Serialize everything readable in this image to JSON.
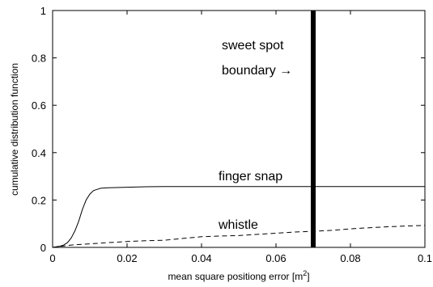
{
  "chart_data": {
    "type": "line",
    "xlabel": "mean square positiong error [m",
    "xlabel_sup": "2",
    "xlabel_tail": "]",
    "ylabel": "cumulative distribution function",
    "xlim": [
      0,
      0.1
    ],
    "ylim": [
      0,
      1
    ],
    "x_ticks": [
      "0",
      "0.02",
      "0.04",
      "0.06",
      "0.08",
      "0.1"
    ],
    "y_ticks": [
      "0",
      "0.2",
      "0.4",
      "0.6",
      "0.8",
      "1"
    ],
    "x_tick_values": [
      0,
      0.02,
      0.04,
      0.06,
      0.08,
      0.1
    ],
    "y_tick_values": [
      0,
      0.2,
      0.4,
      0.6,
      0.8,
      1.0
    ],
    "grid": false,
    "series": [
      {
        "label": "finger snap",
        "style": "solid",
        "x": [
          0,
          0.002,
          0.003,
          0.004,
          0.005,
          0.006,
          0.007,
          0.008,
          0.009,
          0.01,
          0.011,
          0.012,
          0.013,
          0.015,
          0.018,
          0.02,
          0.025,
          0.03,
          0.05,
          0.07,
          0.1
        ],
        "y": [
          0,
          0.005,
          0.01,
          0.02,
          0.04,
          0.07,
          0.11,
          0.16,
          0.2,
          0.225,
          0.24,
          0.245,
          0.25,
          0.252,
          0.253,
          0.254,
          0.256,
          0.257,
          0.257,
          0.257,
          0.257
        ]
      },
      {
        "label": "whistle",
        "style": "dashed",
        "x": [
          0,
          0.005,
          0.01,
          0.015,
          0.02,
          0.025,
          0.03,
          0.035,
          0.04,
          0.045,
          0.05,
          0.055,
          0.06,
          0.065,
          0.07,
          0.075,
          0.08,
          0.085,
          0.09,
          0.095,
          0.1
        ],
        "y": [
          0,
          0.01,
          0.015,
          0.02,
          0.025,
          0.028,
          0.03,
          0.038,
          0.045,
          0.048,
          0.05,
          0.055,
          0.06,
          0.065,
          0.068,
          0.072,
          0.078,
          0.083,
          0.087,
          0.09,
          0.093
        ]
      }
    ],
    "vertical_line": {
      "x": 0.07,
      "label_line1": "sweet spot",
      "label_line2": "boundary →"
    }
  }
}
